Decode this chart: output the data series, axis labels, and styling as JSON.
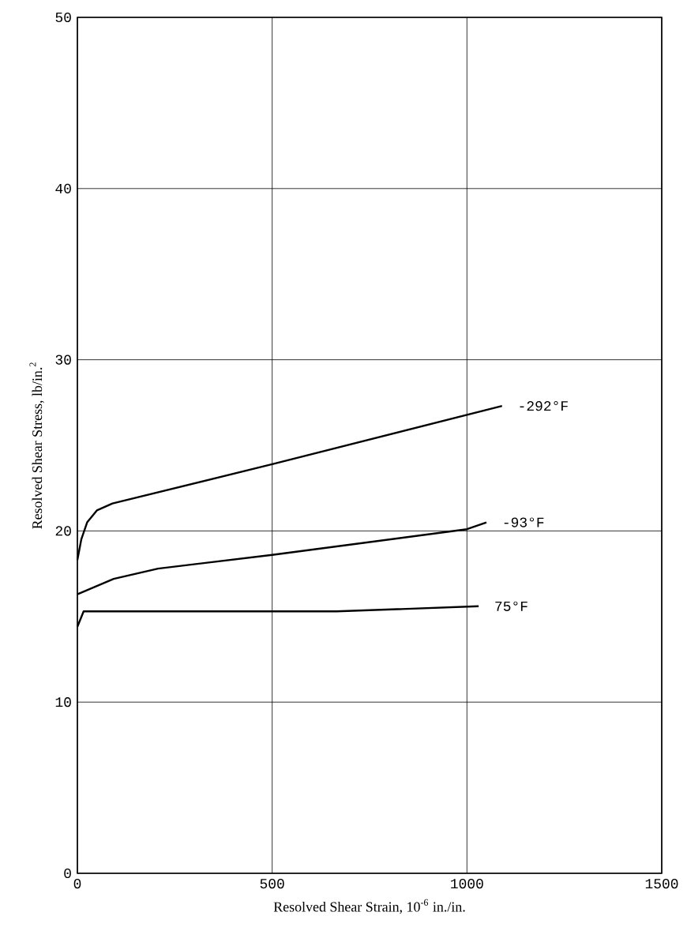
{
  "chart_data": {
    "type": "line",
    "xlabel": "Resolved Shear Strain, 10$^{-6}$ in./in.",
    "ylabel": "Resolved Shear Stress, lb/in.$^{2}$",
    "xlim": [
      0,
      1500
    ],
    "ylim": [
      0,
      50
    ],
    "xticks": [
      0,
      500,
      1000,
      1500
    ],
    "yticks": [
      0,
      10,
      20,
      30,
      40,
      50
    ],
    "grid": true,
    "marker": "none",
    "line_style": "solid",
    "series": [
      {
        "name": "-292°F",
        "color": "#000000",
        "x": [
          0,
          10,
          25,
          50,
          90,
          500,
          1090
        ],
        "values": [
          18.3,
          19.5,
          20.5,
          21.2,
          21.6,
          23.9,
          27.3
        ]
      },
      {
        "name": "-93°F",
        "color": "#000000",
        "x": [
          0,
          93,
          207,
          500,
          1000,
          1050
        ],
        "values": [
          16.3,
          17.2,
          17.8,
          18.6,
          20.1,
          20.5
        ]
      },
      {
        "name": "75°F",
        "color": "#000000",
        "x": [
          0,
          16,
          665,
          1030
        ],
        "values": [
          14.4,
          15.3,
          15.3,
          15.6
        ]
      }
    ]
  }
}
